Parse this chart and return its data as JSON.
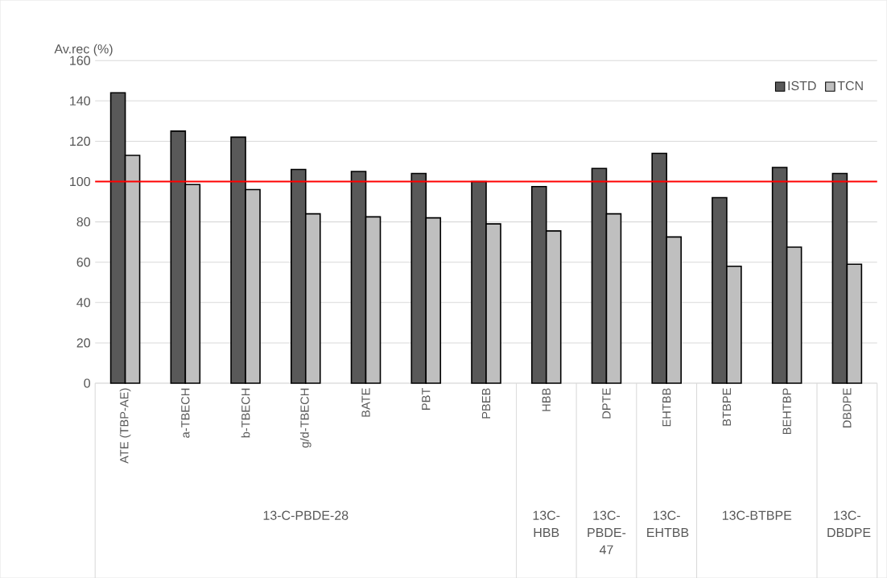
{
  "chart_data": {
    "type": "bar",
    "ylabel": "Av.rec (%)",
    "categories": [
      "ATE (TBP-AE)",
      "a-TBECH",
      "b-TBECH",
      "g/d-TBECH",
      "BATE",
      "PBT",
      "PBEB",
      "HBB",
      "DPTE",
      "EHTBB",
      "BTBPE",
      "BEHTBP",
      "DBDPE"
    ],
    "series": [
      {
        "name": "ISTD",
        "color": "#595959",
        "values": [
          144,
          125,
          122,
          106,
          105,
          104,
          100,
          97.5,
          106.5,
          114,
          92,
          107,
          104
        ]
      },
      {
        "name": "TCN",
        "color": "#bfbfbf",
        "values": [
          113,
          98.5,
          96,
          84,
          82.5,
          82,
          79,
          75.5,
          84,
          72.5,
          58,
          67.5,
          59
        ]
      }
    ],
    "ylim": [
      0,
      160
    ],
    "yticks": [
      0,
      20,
      40,
      60,
      80,
      100,
      120,
      140,
      160
    ],
    "grid": "y",
    "legend": "top right",
    "ref_lines": [
      {
        "axis": "y",
        "value": 100,
        "color": "#ff0000"
      }
    ],
    "annotations": [
      "13-C-PBDE-28",
      "13C-HBB",
      "13C-PBDE-47",
      "13C-EHTBB",
      "13C-BTBPE",
      "13C-DBDPE"
    ]
  }
}
